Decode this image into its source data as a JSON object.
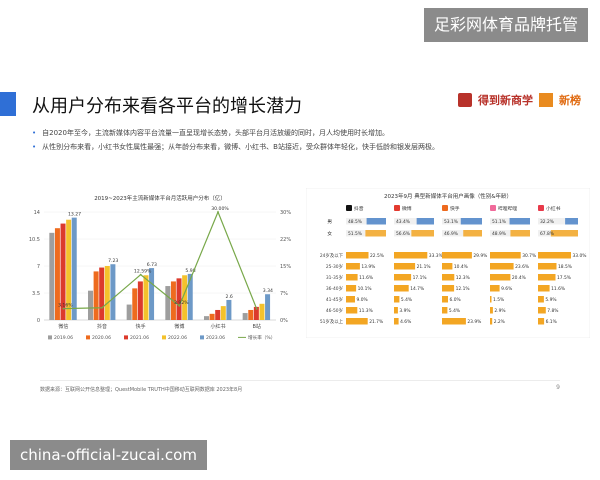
{
  "watermark": {
    "top": "足彩网体育品牌托管",
    "bottom": "china-official-zucai.com"
  },
  "slide": {
    "title": "从用户分布来看各平台的增长潜力",
    "bullets": [
      "自2020年至今，主流新媒体内容平台流量一直呈现增长态势，头部平台月活放缓的同时，月人均使用时长增加。",
      "从性别分布来看，小红书女性属性最强；从年龄分布来看，微博、小红书、B站接近，受众群体年轻化，快手低龄和银发层两极。"
    ],
    "source": "数据来源：互联网公开信息整理；QuestMobile TRUTH中国移动互联网数据库 2023年8月",
    "page_number": "9"
  },
  "logos": {
    "logo1": "得到新商学",
    "logo2": "新榜"
  },
  "colors": {
    "series": [
      "#9e9e9e",
      "#ee6b1e",
      "#dc3a2c",
      "#f4c22c",
      "#6d99c7"
    ],
    "line": "#78a84a",
    "accent": "#2f6fd6",
    "female_bar": "#f3a623",
    "male_bar": "#4a82c8",
    "age_bar": "#f3a623"
  },
  "chart_data": [
    {
      "type": "bar",
      "title": "2019~2023年主流新媒体平台月活跃用户分布（亿）",
      "categories": [
        "微信",
        "抖音",
        "快手",
        "微博",
        "小红书",
        "B站"
      ],
      "series": [
        {
          "name": "2019.06",
          "values": [
            11.3,
            3.8,
            2.0,
            4.4,
            0.5,
            0.9
          ]
        },
        {
          "name": "2020.06",
          "values": [
            11.9,
            6.3,
            4.1,
            5.0,
            0.8,
            1.3
          ]
        },
        {
          "name": "2021.06",
          "values": [
            12.5,
            6.8,
            5.0,
            5.4,
            1.3,
            1.7
          ]
        },
        {
          "name": "2022.06",
          "values": [
            13.0,
            7.0,
            5.8,
            5.8,
            1.8,
            2.1
          ]
        },
        {
          "name": "2023.06",
          "values": [
            13.27,
            7.23,
            6.73,
            5.98,
            2.6,
            3.34
          ]
        }
      ],
      "line": {
        "name": "增长率（%）",
        "values": [
          3.16,
          3.4,
          12.59,
          3.92,
          30.0,
          3.1
        ]
      },
      "data_labels": {
        "bars_2023": [
          "13.27",
          "7.23",
          "6.73",
          "5.98",
          "2.6",
          "3.34"
        ],
        "line": [
          "3.16%",
          "",
          "12.59%",
          "3.92%",
          "30.00%",
          ""
        ]
      },
      "y_left_ticks": [
        "14",
        "10.5",
        "7",
        "3.5",
        "0"
      ],
      "y_right_ticks": [
        "30%",
        "22%",
        "15%",
        "7%",
        "0%"
      ],
      "ylim": [
        0,
        14
      ],
      "y2lim": [
        0,
        30
      ],
      "legend_position": "bottom"
    },
    {
      "type": "table",
      "title": "2023年9月 典型新媒体平台用户画像（性别&年龄）",
      "platforms": [
        "抖音",
        "微博",
        "快手",
        "哔哩哔哩",
        "小红书"
      ],
      "gender_rows": [
        "男",
        "女"
      ],
      "gender": {
        "男": [
          48.5,
          43.4,
          53.1,
          51.1,
          32.2
        ],
        "女": [
          51.5,
          56.6,
          46.9,
          48.9,
          67.8
        ]
      },
      "gender_labels": {
        "男": [
          "48.5%",
          "43.4%",
          "53.1%",
          "51.1%",
          "32.2%"
        ],
        "女": [
          "51.5%",
          "56.6%",
          "46.9%",
          "48.9%",
          "67.8%"
        ]
      },
      "age_groups": [
        "24岁及以下",
        "25-30岁",
        "31-35岁",
        "36-40岁",
        "41-45岁",
        "46-50岁",
        "51岁及以上"
      ],
      "age": [
        [
          22.5,
          33.3,
          29.9,
          30.7,
          33.0
        ],
        [
          13.9,
          21.1,
          10.4,
          23.6,
          18.5
        ],
        [
          11.6,
          17.1,
          12.3,
          20.4,
          17.5
        ],
        [
          10.1,
          14.7,
          12.1,
          9.6,
          11.6
        ],
        [
          9.0,
          5.4,
          6.0,
          1.5,
          5.9
        ],
        [
          11.3,
          3.9,
          5.4,
          2.9,
          7.8
        ],
        [
          21.7,
          4.6,
          23.9,
          2.2,
          6.1
        ]
      ],
      "age_labels": [
        [
          "22.5%",
          "33.3%",
          "29.9%",
          "30.7%",
          "33.0%"
        ],
        [
          "13.9%",
          "21.1%",
          "10.4%",
          "23.6%",
          "18.5%"
        ],
        [
          "11.6%",
          "17.1%",
          "12.3%",
          "20.4%",
          "17.5%"
        ],
        [
          "10.1%",
          "14.7%",
          "12.1%",
          "9.6%",
          "11.6%"
        ],
        [
          "9.0%",
          "5.4%",
          "6.0%",
          "1.5%",
          "5.9%"
        ],
        [
          "11.3%",
          "3.9%",
          "5.4%",
          "2.9%",
          "7.8%"
        ],
        [
          "21.7%",
          "4.6%",
          "23.9%",
          "2.2%",
          "6.1%"
        ]
      ]
    }
  ]
}
